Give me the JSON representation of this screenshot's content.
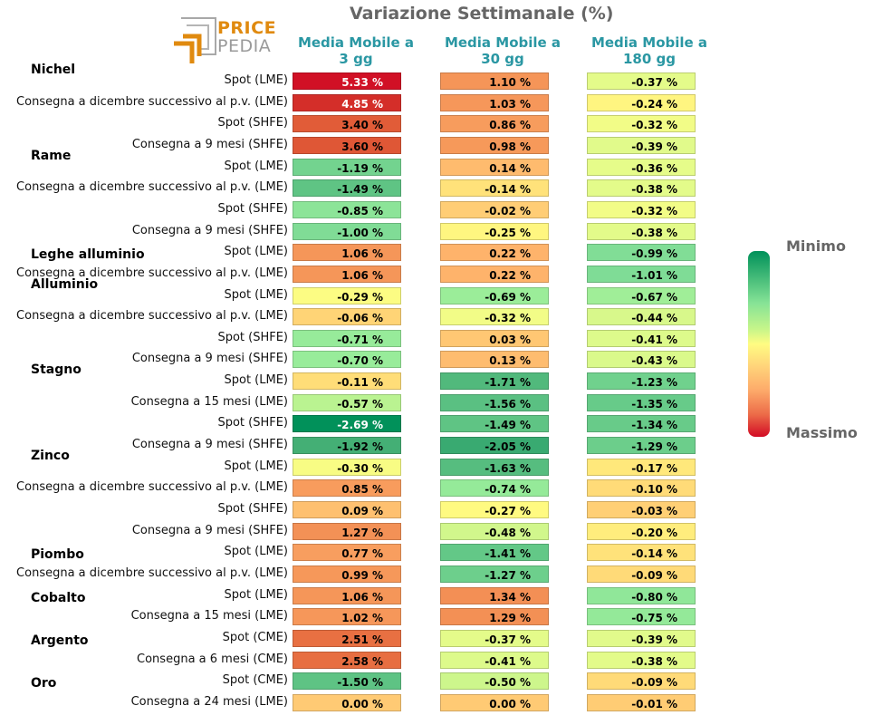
{
  "header": {
    "title": "Variazione Settimanale (%)",
    "logo_line1": "PRICE",
    "logo_line2": "PEDIA"
  },
  "legend": {
    "top_label": "Minimo",
    "bottom_label": "Massimo",
    "colors": [
      "#00915a",
      "#86e396",
      "#fffc82",
      "#fdaa6a",
      "#d20b25"
    ]
  },
  "chart_data": {
    "type": "heatmap",
    "title": "Variazione Settimanale (%)",
    "columns": [
      "Media Mobile a 3 gg",
      "Media Mobile a 30 gg",
      "Media Mobile a 180 gg"
    ],
    "column_lines": [
      [
        "Media Mobile a",
        "3 gg"
      ],
      [
        "Media Mobile a",
        "30 gg"
      ],
      [
        "Media Mobile a",
        "180 gg"
      ]
    ],
    "unit": "%",
    "color_scale": "green (minimum) to yellow to red (maximum)",
    "groups": [
      {
        "name": "Nichel",
        "rows": [
          {
            "label": "Spot (LME)",
            "values": [
              5.33,
              1.1,
              -0.37
            ]
          },
          {
            "label": "Consegna a dicembre successivo al p.v. (LME)",
            "values": [
              4.85,
              1.03,
              -0.24
            ]
          },
          {
            "label": "Spot (SHFE)",
            "values": [
              3.4,
              0.86,
              -0.32
            ]
          },
          {
            "label": "Consegna a 9 mesi (SHFE)",
            "values": [
              3.6,
              0.98,
              -0.39
            ]
          }
        ]
      },
      {
        "name": "Rame",
        "rows": [
          {
            "label": "Spot (LME)",
            "values": [
              -1.19,
              0.14,
              -0.36
            ]
          },
          {
            "label": "Consegna a dicembre successivo al p.v. (LME)",
            "values": [
              -1.49,
              -0.14,
              -0.38
            ]
          },
          {
            "label": "Spot (SHFE)",
            "values": [
              -0.85,
              -0.02,
              -0.32
            ]
          },
          {
            "label": "Consegna a 9 mesi (SHFE)",
            "values": [
              -1.0,
              -0.25,
              -0.38
            ]
          }
        ]
      },
      {
        "name": "Leghe alluminio",
        "rows": [
          {
            "label": "Spot (LME)",
            "values": [
              1.06,
              0.22,
              -0.99
            ]
          },
          {
            "label": "Consegna a dicembre successivo al p.v. (LME)",
            "values": [
              1.06,
              0.22,
              -1.01
            ]
          }
        ]
      },
      {
        "name": "Alluminio",
        "rows": [
          {
            "label": "Spot (LME)",
            "values": [
              -0.29,
              -0.69,
              -0.67
            ]
          },
          {
            "label": "Consegna a dicembre successivo al p.v. (LME)",
            "values": [
              -0.06,
              -0.32,
              -0.44
            ]
          },
          {
            "label": "Spot (SHFE)",
            "values": [
              -0.71,
              0.03,
              -0.41
            ]
          },
          {
            "label": "Consegna a 9 mesi (SHFE)",
            "values": [
              -0.7,
              0.13,
              -0.43
            ]
          }
        ]
      },
      {
        "name": "Stagno",
        "rows": [
          {
            "label": "Spot (LME)",
            "values": [
              -0.11,
              -1.71,
              -1.23
            ]
          },
          {
            "label": "Consegna a 15 mesi (LME)",
            "values": [
              -0.57,
              -1.56,
              -1.35
            ]
          },
          {
            "label": "Spot (SHFE)",
            "values": [
              -2.69,
              -1.49,
              -1.34
            ]
          },
          {
            "label": "Consegna a 9 mesi (SHFE)",
            "values": [
              -1.92,
              -2.05,
              -1.29
            ]
          }
        ]
      },
      {
        "name": "Zinco",
        "rows": [
          {
            "label": "Spot (LME)",
            "values": [
              -0.3,
              -1.63,
              -0.17
            ]
          },
          {
            "label": "Consegna a dicembre successivo al p.v. (LME)",
            "values": [
              0.85,
              -0.74,
              -0.1
            ]
          },
          {
            "label": "Spot (SHFE)",
            "values": [
              0.09,
              -0.27,
              -0.03
            ]
          },
          {
            "label": "Consegna a 9 mesi (SHFE)",
            "values": [
              1.27,
              -0.48,
              -0.2
            ]
          }
        ]
      },
      {
        "name": "Piombo",
        "rows": [
          {
            "label": "Spot (LME)",
            "values": [
              0.77,
              -1.41,
              -0.14
            ]
          },
          {
            "label": "Consegna a dicembre successivo al p.v. (LME)",
            "values": [
              0.99,
              -1.27,
              -0.09
            ]
          }
        ]
      },
      {
        "name": "Cobalto",
        "rows": [
          {
            "label": "Spot (LME)",
            "values": [
              1.06,
              1.34,
              -0.8
            ]
          },
          {
            "label": "Consegna a 15 mesi (LME)",
            "values": [
              1.02,
              1.29,
              -0.75
            ]
          }
        ]
      },
      {
        "name": "Argento",
        "rows": [
          {
            "label": "Spot (CME)",
            "values": [
              2.51,
              -0.37,
              -0.39
            ]
          },
          {
            "label": "Consegna a 6 mesi (CME)",
            "values": [
              2.58,
              -0.41,
              -0.38
            ]
          }
        ]
      },
      {
        "name": "Oro",
        "rows": [
          {
            "label": "Spot (CME)",
            "values": [
              -1.5,
              -0.5,
              -0.09
            ]
          },
          {
            "label": "Consegna a 24 mesi (LME)",
            "values": [
              0.0,
              0.0,
              -0.01
            ]
          }
        ]
      }
    ]
  }
}
